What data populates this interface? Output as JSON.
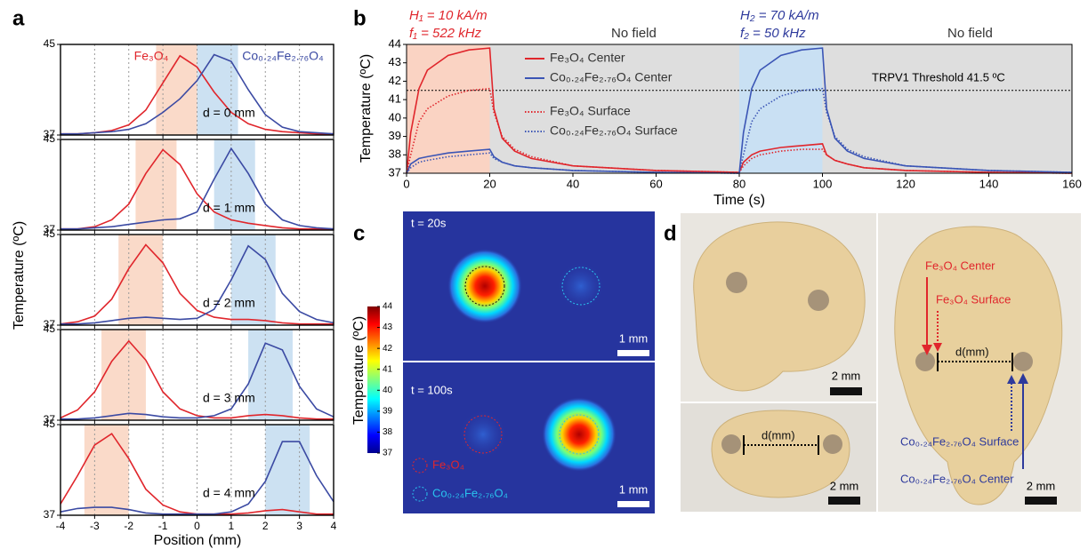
{
  "panel_labels": [
    "a",
    "b",
    "c",
    "d"
  ],
  "chart_data": [
    {
      "type": "line",
      "x": [
        -4,
        -3.5,
        -3,
        -2.5,
        -2,
        -1.5,
        -1,
        -0.5,
        0,
        0.5,
        1,
        1.5,
        2,
        2.5,
        3,
        3.5,
        4
      ],
      "xlim": [
        -4,
        4
      ],
      "xticks": [
        -4,
        -3,
        -2,
        -1,
        0,
        1,
        2,
        3,
        4
      ],
      "show_xtick_labels": false,
      "grid": true,
      "ylim": [
        37,
        45
      ],
      "yticks": [
        37,
        45
      ],
      "annotation": "d = 0 mm",
      "shaded_regions": [
        {
          "x": [
            -1.2,
            0
          ],
          "color": "#f9d3c0"
        },
        {
          "x": [
            0,
            1.2
          ],
          "color": "#c3dcf0"
        }
      ],
      "series": [
        {
          "name": "Fe₃O₄",
          "color": "#e0262c",
          "values": [
            37.1,
            37.1,
            37.2,
            37.4,
            37.9,
            39.2,
            41.6,
            44.0,
            43.0,
            40.8,
            39.0,
            38.0,
            37.5,
            37.3,
            37.2,
            37.1,
            37.1
          ]
        },
        {
          "name": "Co₀.₂₄Fe₂.₇₆O₄",
          "color": "#3b4aa3",
          "values": [
            37.1,
            37.1,
            37.2,
            37.3,
            37.5,
            38.0,
            39.0,
            40.2,
            41.8,
            44.1,
            43.5,
            41.0,
            38.8,
            37.7,
            37.3,
            37.2,
            37.1
          ]
        }
      ]
    },
    {
      "type": "line",
      "x": [
        -4,
        -3.5,
        -3,
        -2.5,
        -2,
        -1.5,
        -1,
        -0.5,
        0,
        0.5,
        1,
        1.5,
        2,
        2.5,
        3,
        3.5,
        4
      ],
      "xlim": [
        -4,
        4
      ],
      "xticks": [
        -4,
        -3,
        -2,
        -1,
        0,
        1,
        2,
        3,
        4
      ],
      "show_xtick_labels": false,
      "grid": true,
      "ylim": [
        37,
        45
      ],
      "yticks": [
        37,
        45
      ],
      "annotation": "d = 1 mm",
      "shaded_regions": [
        {
          "x": [
            -1.8,
            -0.6
          ],
          "color": "#f9d3c0"
        },
        {
          "x": [
            0.5,
            1.7
          ],
          "color": "#c3dcf0"
        }
      ],
      "series": [
        {
          "color": "#e0262c",
          "values": [
            37.1,
            37.1,
            37.3,
            37.9,
            39.3,
            42.0,
            44.1,
            42.8,
            40.2,
            38.6,
            37.9,
            37.6,
            37.4,
            37.2,
            37.1,
            37.1,
            37.1
          ]
        },
        {
          "color": "#3b4aa3",
          "values": [
            37.1,
            37.1,
            37.2,
            37.3,
            37.5,
            37.7,
            37.9,
            38.0,
            38.6,
            41.5,
            44.2,
            42.0,
            39.3,
            37.9,
            37.4,
            37.2,
            37.1
          ]
        }
      ]
    },
    {
      "type": "line",
      "x": [
        -4,
        -3.5,
        -3,
        -2.5,
        -2,
        -1.5,
        -1,
        -0.5,
        0,
        0.5,
        1,
        1.5,
        2,
        2.5,
        3,
        3.5,
        4
      ],
      "xlim": [
        -4,
        4
      ],
      "xticks": [
        -4,
        -3,
        -2,
        -1,
        0,
        1,
        2,
        3,
        4
      ],
      "show_xtick_labels": false,
      "grid": true,
      "ylim": [
        37,
        45
      ],
      "yticks": [
        37,
        45
      ],
      "annotation": "d = 2 mm",
      "ylabel": "Temperature (ºC)",
      "shaded_regions": [
        {
          "x": [
            -2.3,
            -1.0
          ],
          "color": "#f9d3c0"
        },
        {
          "x": [
            1.0,
            2.3
          ],
          "color": "#c3dcf0"
        }
      ],
      "series": [
        {
          "color": "#e0262c",
          "values": [
            37.1,
            37.3,
            37.8,
            39.3,
            42.0,
            44.1,
            42.5,
            39.8,
            38.3,
            37.7,
            37.5,
            37.5,
            37.4,
            37.2,
            37.1,
            37.1,
            37.1
          ]
        },
        {
          "color": "#3b4aa3",
          "values": [
            37.1,
            37.1,
            37.2,
            37.4,
            37.6,
            37.7,
            37.6,
            37.5,
            37.6,
            38.4,
            41.0,
            44.0,
            42.8,
            39.8,
            38.2,
            37.5,
            37.2
          ]
        }
      ]
    },
    {
      "type": "line",
      "x": [
        -4,
        -3.5,
        -3,
        -2.5,
        -2,
        -1.5,
        -1,
        -0.5,
        0,
        0.5,
        1,
        1.5,
        2,
        2.5,
        3,
        3.5,
        4
      ],
      "xlim": [
        -4,
        4
      ],
      "xticks": [
        -4,
        -3,
        -2,
        -1,
        0,
        1,
        2,
        3,
        4
      ],
      "show_xtick_labels": false,
      "grid": true,
      "ylim": [
        37,
        45
      ],
      "yticks": [
        37,
        45
      ],
      "annotation": "d = 3 mm",
      "shaded_regions": [
        {
          "x": [
            -2.8,
            -1.5
          ],
          "color": "#f9d3c0"
        },
        {
          "x": [
            1.5,
            2.8
          ],
          "color": "#c3dcf0"
        }
      ],
      "series": [
        {
          "color": "#e0262c",
          "values": [
            37.2,
            37.9,
            39.5,
            42.2,
            44.0,
            42.3,
            39.5,
            38.0,
            37.4,
            37.2,
            37.2,
            37.4,
            37.5,
            37.4,
            37.2,
            37.1,
            37.1
          ]
        },
        {
          "color": "#3b4aa3",
          "values": [
            37.1,
            37.1,
            37.2,
            37.4,
            37.6,
            37.5,
            37.3,
            37.2,
            37.2,
            37.4,
            38.0,
            40.2,
            43.8,
            43.2,
            40.0,
            38.0,
            37.3
          ]
        }
      ]
    },
    {
      "type": "line",
      "x": [
        -4,
        -3.5,
        -3,
        -2.5,
        -2,
        -1.5,
        -1,
        -0.5,
        0,
        0.5,
        1,
        1.5,
        2,
        2.5,
        3,
        3.5,
        4
      ],
      "xlim": [
        -4,
        4
      ],
      "xticks": [
        -4,
        -3,
        -2,
        -1,
        0,
        1,
        2,
        3,
        4
      ],
      "show_xtick_labels": true,
      "grid": true,
      "ylim": [
        37,
        45
      ],
      "yticks": [
        37,
        45
      ],
      "annotation": "d = 4 mm",
      "xlabel": "Position (mm)",
      "shaded_regions": [
        {
          "x": [
            -3.3,
            -2.0
          ],
          "color": "#f9d3c0"
        },
        {
          "x": [
            2.0,
            3.3
          ],
          "color": "#c3dcf0"
        }
      ],
      "series": [
        {
          "color": "#e0262c",
          "values": [
            38.0,
            40.5,
            43.2,
            44.2,
            42.0,
            39.3,
            37.9,
            37.3,
            37.1,
            37.1,
            37.1,
            37.2,
            37.4,
            37.5,
            37.3,
            37.1,
            37.1
          ]
        },
        {
          "color": "#3b4aa3",
          "values": [
            37.3,
            37.6,
            37.7,
            37.7,
            37.5,
            37.2,
            37.1,
            37.1,
            37.1,
            37.1,
            37.3,
            38.0,
            40.0,
            43.5,
            43.5,
            40.5,
            38.2
          ]
        }
      ]
    },
    {
      "type": "line",
      "x": [
        0,
        1,
        3,
        5,
        10,
        15,
        20,
        21,
        23,
        26,
        30,
        40,
        60,
        80,
        81,
        83,
        85,
        90,
        95,
        100,
        101,
        103,
        106,
        110,
        120,
        140,
        160
      ],
      "xlim": [
        0,
        160
      ],
      "xticks": [
        0,
        20,
        40,
        60,
        80,
        100,
        120,
        140,
        160
      ],
      "show_xtick_labels": true,
      "grid": false,
      "ylim": [
        37,
        44
      ],
      "yticks": [
        37,
        38,
        39,
        40,
        41,
        42,
        43,
        44
      ],
      "xlabel": "Time (s)",
      "ylabel": "Temperature (ºC)",
      "shaded_regions": [
        {
          "x": [
            0,
            20
          ],
          "color": "#fad3c3"
        },
        {
          "x": [
            20,
            80
          ],
          "color": "#dedede"
        },
        {
          "x": [
            80,
            100
          ],
          "color": "#c9e0f3"
        },
        {
          "x": [
            100,
            160
          ],
          "color": "#dedede"
        }
      ],
      "threshold": {
        "value": 41.5,
        "label": "TRPV1 Threshold 41.5 ºC"
      },
      "annotations": [
        {
          "text": "H₁ = 10 kA/m",
          "color": "#e0262c"
        },
        {
          "text": "f₁ = 522 kHz",
          "color": "#e0262c"
        },
        {
          "text": "No field",
          "color": "#333333"
        },
        {
          "text": "H₂ = 70 kA/m",
          "color": "#2e3a9c"
        },
        {
          "text": "f₂ = 50 kHz",
          "color": "#2e3a9c"
        },
        {
          "text": "No field",
          "color": "#333333"
        }
      ],
      "series": [
        {
          "name": "Fe₃O₄ Center",
          "color": "#e0262c",
          "style": "solid",
          "values": [
            37,
            39.2,
            41.6,
            42.6,
            43.4,
            43.7,
            43.8,
            40.5,
            38.9,
            38.2,
            37.8,
            37.4,
            37.15,
            37.05,
            37.6,
            38.0,
            38.2,
            38.4,
            38.5,
            38.6,
            38.0,
            37.7,
            37.5,
            37.3,
            37.15,
            37.05,
            37.0
          ]
        },
        {
          "name": "Co₀.₂₄Fe₂.₇₆O₄ Center",
          "color": "#3b55b5",
          "style": "solid",
          "values": [
            37,
            37.5,
            37.8,
            37.9,
            38.1,
            38.2,
            38.3,
            37.9,
            37.6,
            37.4,
            37.3,
            37.15,
            37.05,
            37.0,
            39.2,
            41.6,
            42.6,
            43.4,
            43.7,
            43.8,
            40.5,
            38.9,
            38.2,
            37.8,
            37.4,
            37.15,
            37.05
          ]
        },
        {
          "name": "Fe₃O₄ Surface",
          "color": "#e0262c",
          "style": "dotted",
          "values": [
            37,
            38.0,
            39.8,
            40.5,
            41.2,
            41.5,
            41.6,
            40.3,
            39.0,
            38.3,
            37.9,
            37.4,
            37.15,
            37.05,
            37.4,
            37.8,
            38.0,
            38.2,
            38.3,
            38.3,
            38.0,
            37.7,
            37.5,
            37.3,
            37.15,
            37.05,
            37.0
          ]
        },
        {
          "name": "Co₀.₂₄Fe₂.₇₆O₄ Surface",
          "color": "#3b55b5",
          "style": "dotted",
          "values": [
            37,
            37.3,
            37.6,
            37.7,
            37.9,
            38.0,
            38.1,
            37.8,
            37.6,
            37.4,
            37.3,
            37.15,
            37.05,
            37.0,
            38.0,
            39.8,
            40.5,
            41.2,
            41.5,
            41.6,
            40.3,
            39.0,
            38.3,
            37.9,
            37.4,
            37.15,
            37.05
          ]
        }
      ]
    },
    {
      "type": "heatmap",
      "ylabel": "Temperature (ºC)",
      "clim": [
        37,
        44
      ],
      "cticks": [
        37,
        38,
        39,
        40,
        41,
        42,
        43,
        44
      ],
      "frames": [
        {
          "label": "t = 20s",
          "scale_bar": "1 mm"
        },
        {
          "label": "t = 100s",
          "scale_bar": "1 mm"
        }
      ],
      "legend": [
        "Fe₃O₄",
        "Co₀.₂₄Fe₂.₇₆O₄"
      ]
    }
  ],
  "panel_d": {
    "labels": [
      "Fe₃O₄ Center",
      "Fe₃O₄ Surface",
      "d(mm)",
      "Co₀.₂₄Fe₂.₇₆O₄ Surface",
      "Co₀.₂₄Fe₂.₇₆O₄ Center",
      "d(mm)"
    ],
    "scale_bars": [
      "2 mm",
      "2 mm",
      "2 mm"
    ]
  }
}
